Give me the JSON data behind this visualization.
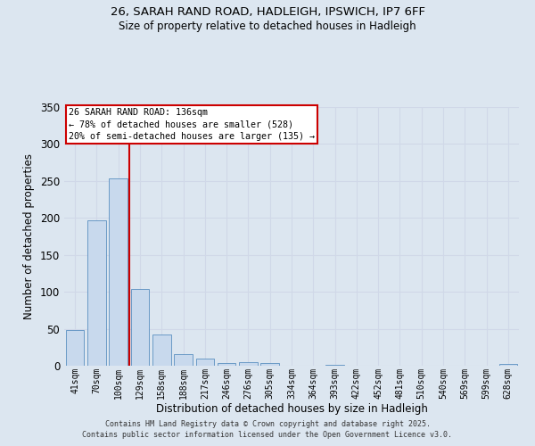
{
  "title_line1": "26, SARAH RAND ROAD, HADLEIGH, IPSWICH, IP7 6FF",
  "title_line2": "Size of property relative to detached houses in Hadleigh",
  "xlabel": "Distribution of detached houses by size in Hadleigh",
  "ylabel": "Number of detached properties",
  "bar_labels": [
    "41sqm",
    "70sqm",
    "100sqm",
    "129sqm",
    "158sqm",
    "188sqm",
    "217sqm",
    "246sqm",
    "276sqm",
    "305sqm",
    "334sqm",
    "364sqm",
    "393sqm",
    "422sqm",
    "452sqm",
    "481sqm",
    "510sqm",
    "540sqm",
    "569sqm",
    "599sqm",
    "628sqm"
  ],
  "bar_values": [
    48,
    197,
    254,
    104,
    42,
    16,
    10,
    4,
    5,
    4,
    0,
    0,
    1,
    0,
    0,
    0,
    0,
    0,
    0,
    0,
    2
  ],
  "bar_color": "#c8d9ed",
  "bar_edge_color": "#5a8fc0",
  "vline_x_index": 2.5,
  "annotation_text_line1": "26 SARAH RAND ROAD: 136sqm",
  "annotation_text_line2": "← 78% of detached houses are smaller (528)",
  "annotation_text_line3": "20% of semi-detached houses are larger (135) →",
  "annotation_box_facecolor": "#ffffff",
  "annotation_box_edgecolor": "#cc0000",
  "vline_color": "#cc0000",
  "grid_color": "#d0d8e8",
  "background_color": "#dce6f0",
  "fig_background_color": "#dce6f0",
  "ylim": [
    0,
    350
  ],
  "yticks": [
    0,
    50,
    100,
    150,
    200,
    250,
    300,
    350
  ],
  "footer_line1": "Contains HM Land Registry data © Crown copyright and database right 2025.",
  "footer_line2": "Contains public sector information licensed under the Open Government Licence v3.0."
}
